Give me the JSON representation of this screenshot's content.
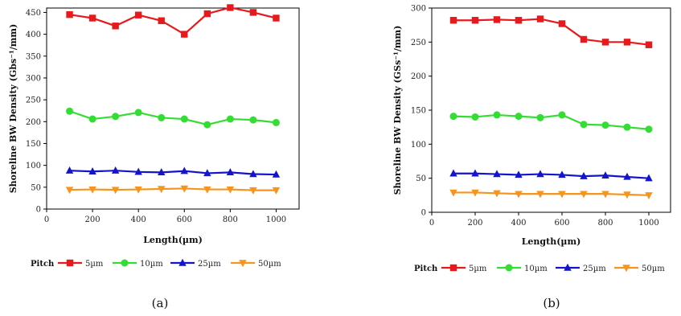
{
  "chart_data": [
    {
      "type": "line",
      "caption": "(a)",
      "xlabel": "Length(µm)",
      "ylabel": "Shoreline BW Density (Gbs⁻¹/mm)",
      "xlim": [
        0,
        1100
      ],
      "ylim": [
        0,
        460
      ],
      "xticks": [
        0,
        200,
        400,
        600,
        800,
        1000
      ],
      "yticks": [
        0,
        50,
        100,
        150,
        200,
        250,
        300,
        350,
        400,
        450
      ],
      "x": [
        100,
        200,
        300,
        400,
        500,
        600,
        700,
        800,
        900,
        1000
      ],
      "legend_title": "Pitch",
      "legend_position": "bottom",
      "series": [
        {
          "name": "5µm",
          "color": "#e8191c",
          "marker": "square",
          "values": [
            445,
            437,
            419,
            444,
            431,
            400,
            447,
            461,
            450,
            437
          ]
        },
        {
          "name": "10µm",
          "color": "#33dd33",
          "marker": "circle",
          "values": [
            224,
            206,
            212,
            221,
            209,
            206,
            193,
            206,
            204,
            198
          ]
        },
        {
          "name": "25µm",
          "color": "#1414cc",
          "marker": "triangle-up",
          "values": [
            88,
            86,
            88,
            85,
            84,
            87,
            82,
            84,
            80,
            79
          ]
        },
        {
          "name": "50µm",
          "color": "#f7941d",
          "marker": "triangle-down",
          "values": [
            44,
            45,
            44,
            45,
            46,
            47,
            45,
            45,
            43,
            43
          ]
        }
      ]
    },
    {
      "type": "line",
      "caption": "(b)",
      "xlabel": "Length(µm)",
      "ylabel": "Shoreline BW Density (GSs⁻¹/mm)",
      "xlim": [
        0,
        1100
      ],
      "ylim": [
        0,
        300
      ],
      "xticks": [
        0,
        200,
        400,
        600,
        800,
        1000
      ],
      "yticks": [
        0,
        50,
        100,
        150,
        200,
        250,
        300
      ],
      "x": [
        100,
        200,
        300,
        400,
        500,
        600,
        700,
        800,
        900,
        1000
      ],
      "legend_title": "Pitch",
      "legend_position": "bottom",
      "series": [
        {
          "name": "5µm",
          "color": "#e8191c",
          "marker": "square",
          "values": [
            282,
            282,
            283,
            282,
            284,
            277,
            254,
            250,
            250,
            246
          ]
        },
        {
          "name": "10µm",
          "color": "#33dd33",
          "marker": "circle",
          "values": [
            141,
            140,
            143,
            141,
            139,
            143,
            129,
            128,
            125,
            122
          ]
        },
        {
          "name": "25µm",
          "color": "#1414cc",
          "marker": "triangle-up",
          "values": [
            57,
            57,
            56,
            55,
            56,
            55,
            53,
            54,
            52,
            50
          ]
        },
        {
          "name": "50µm",
          "color": "#f7941d",
          "marker": "triangle-down",
          "values": [
            29,
            29,
            28,
            27,
            27,
            27,
            27,
            27,
            26,
            25
          ]
        }
      ]
    }
  ]
}
